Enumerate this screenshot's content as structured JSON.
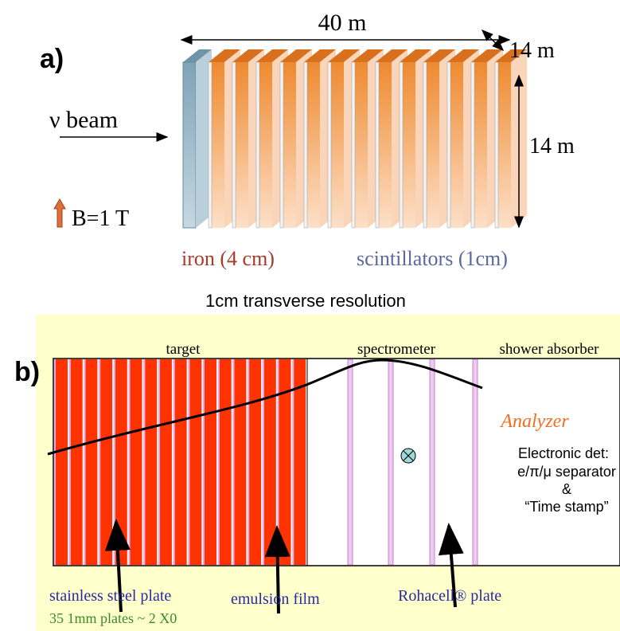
{
  "panel_a": {
    "label": "a)",
    "width_label": "40 m",
    "depth_label": "14 m",
    "height_label": "14 m",
    "beam": "ν beam",
    "field": "B=1 T",
    "iron": "iron (4 cm)",
    "scintillators": "scintillators (1cm)",
    "resolution": "1cm transverse resolution"
  },
  "panel_b": {
    "label": "b)",
    "sections": [
      "target",
      "spectrometer",
      "shower absorber"
    ],
    "analyzer": "Analyzer",
    "analyzer_lines": [
      "Electronic det:",
      "e/π/μ separator",
      "&",
      "“Time stamp”"
    ],
    "steel": "stainless steel plate",
    "emulsion": "emulsion film",
    "rohacell": "Rohacell® plate",
    "plates_note": "35  1mm plates ~ 2 X0"
  }
}
